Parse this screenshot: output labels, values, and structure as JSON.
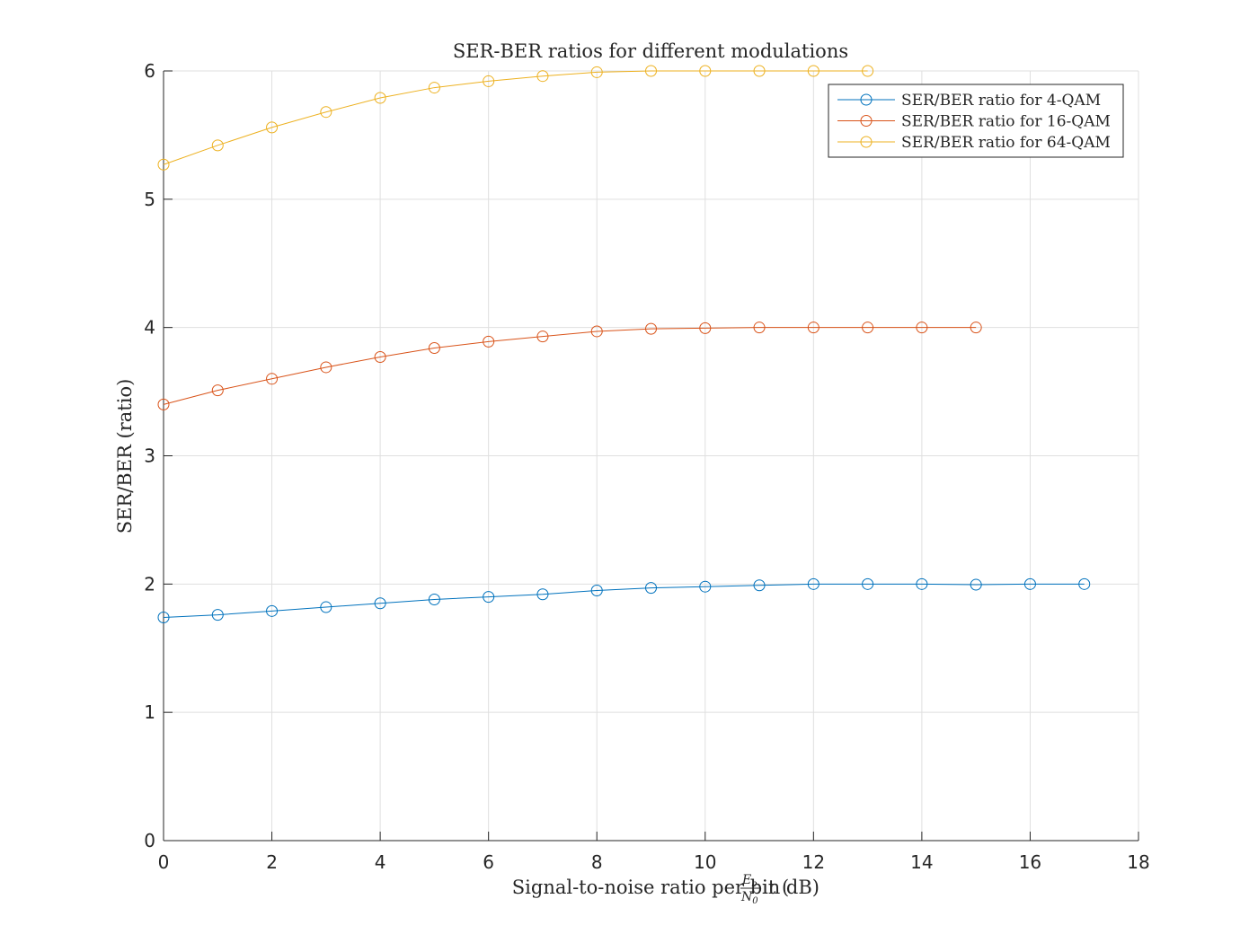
{
  "chart_data": {
    "type": "line",
    "title": "SER-BER ratios for different modulations",
    "xlabel": {
      "prefix": "Signal-to-noise ratio per bit (",
      "frac_num": "E",
      "frac_num_sub": "b",
      "frac_den": "N",
      "frac_den_sub": "0",
      "suffix": " in dB)"
    },
    "ylabel": "SER/BER (ratio)",
    "xlim": [
      0,
      18
    ],
    "ylim": [
      0,
      6
    ],
    "xticks": [
      "0",
      "2",
      "4",
      "6",
      "8",
      "10",
      "12",
      "14",
      "16",
      "18"
    ],
    "yticks": [
      "0",
      "1",
      "2",
      "3",
      "4",
      "5",
      "6"
    ],
    "grid": true,
    "legend_position": "top-right",
    "marker": "circle",
    "series": [
      {
        "name": "SER/BER ratio for 4-QAM",
        "color": "#0072BD",
        "x": [
          0,
          1,
          2,
          3,
          4,
          5,
          6,
          7,
          8,
          9,
          10,
          11,
          12,
          13,
          14,
          15,
          16,
          17
        ],
        "y": [
          1.74,
          1.76,
          1.79,
          1.82,
          1.85,
          1.88,
          1.9,
          1.92,
          1.95,
          1.97,
          1.98,
          1.99,
          2.0,
          2.0,
          2.0,
          1.995,
          2.0,
          2.0
        ]
      },
      {
        "name": "SER/BER ratio for 16-QAM",
        "color": "#D95319",
        "x": [
          0,
          1,
          2,
          3,
          4,
          5,
          6,
          7,
          8,
          9,
          10,
          11,
          12,
          13,
          14,
          15
        ],
        "y": [
          3.4,
          3.51,
          3.6,
          3.69,
          3.77,
          3.84,
          3.89,
          3.93,
          3.97,
          3.99,
          3.995,
          4.0,
          4.0,
          4.0,
          4.0,
          4.0
        ]
      },
      {
        "name": "SER/BER ratio for 64-QAM",
        "color": "#EDB120",
        "x": [
          0,
          1,
          2,
          3,
          4,
          5,
          6,
          7,
          8,
          9,
          10,
          11,
          12,
          13
        ],
        "y": [
          5.27,
          5.42,
          5.56,
          5.68,
          5.79,
          5.87,
          5.92,
          5.96,
          5.99,
          6.0,
          6.0,
          6.0,
          6.0,
          6.0
        ]
      }
    ]
  }
}
